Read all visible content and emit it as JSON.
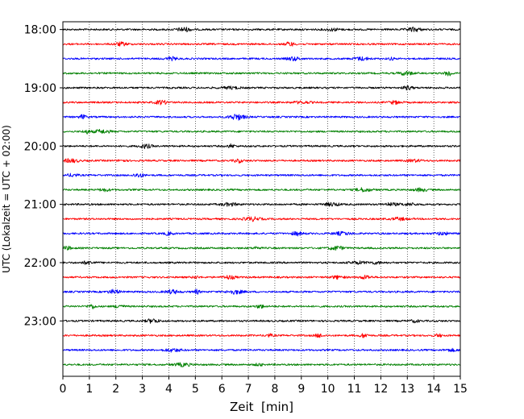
{
  "chart_data": {
    "type": "line",
    "description_kind": "helicorder",
    "xlabel": "Zeit  [min]",
    "ylabel": "UTC (Lokalzeit = UTC + 02:00)",
    "xlim": [
      0,
      15
    ],
    "xticks": [
      "0",
      "1",
      "2",
      "3",
      "4",
      "5",
      "6",
      "7",
      "8",
      "9",
      "10",
      "11",
      "12",
      "13",
      "14",
      "15"
    ],
    "vertical_grid": "dotted at each minute",
    "ylim_minutes_of_day": [
      1072,
      1437
    ],
    "yticks": [
      {
        "label": "18:00",
        "minute": 1080
      },
      {
        "label": "19:00",
        "minute": 1140
      },
      {
        "label": "20:00",
        "minute": 1200
      },
      {
        "label": "21:00",
        "minute": 1260
      },
      {
        "label": "22:00",
        "minute": 1320
      },
      {
        "label": "23:00",
        "minute": 1380
      }
    ],
    "trace_minutes": 15,
    "trace_colors": [
      "#000000",
      "#ff0000",
      "#0000ff",
      "#008000"
    ],
    "traces": [
      {
        "start": "18:00",
        "color": "#000000"
      },
      {
        "start": "18:15",
        "color": "#ff0000"
      },
      {
        "start": "18:30",
        "color": "#0000ff"
      },
      {
        "start": "18:45",
        "color": "#008000"
      },
      {
        "start": "19:00",
        "color": "#000000"
      },
      {
        "start": "19:15",
        "color": "#ff0000"
      },
      {
        "start": "19:30",
        "color": "#0000ff"
      },
      {
        "start": "19:45",
        "color": "#008000"
      },
      {
        "start": "20:00",
        "color": "#000000"
      },
      {
        "start": "20:15",
        "color": "#ff0000"
      },
      {
        "start": "20:30",
        "color": "#0000ff"
      },
      {
        "start": "20:45",
        "color": "#008000"
      },
      {
        "start": "21:00",
        "color": "#000000"
      },
      {
        "start": "21:15",
        "color": "#ff0000"
      },
      {
        "start": "21:30",
        "color": "#0000ff"
      },
      {
        "start": "21:45",
        "color": "#008000"
      },
      {
        "start": "22:00",
        "color": "#000000"
      },
      {
        "start": "22:15",
        "color": "#ff0000"
      },
      {
        "start": "22:30",
        "color": "#0000ff"
      },
      {
        "start": "22:45",
        "color": "#008000"
      },
      {
        "start": "23:00",
        "color": "#000000"
      },
      {
        "start": "23:15",
        "color": "#ff0000"
      },
      {
        "start": "23:30",
        "color": "#0000ff"
      },
      {
        "start": "23:45",
        "color": "#008000"
      }
    ]
  }
}
